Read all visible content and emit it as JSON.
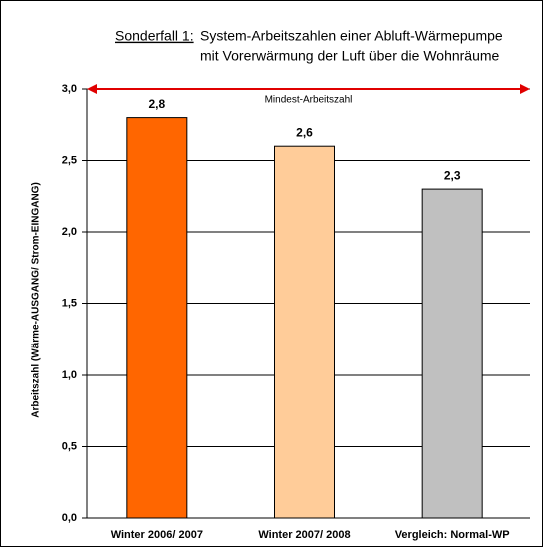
{
  "chart_data": {
    "type": "bar",
    "title_prefix": "Sonderfall 1:",
    "title": [
      "System-Arbeitszahlen einer Abluft-Wärmepumpe",
      "mit Vorerwärmung der Luft über die Wohnräume"
    ],
    "ylabel": "Arbeitszahl  (Wärme-AUSGANG/ Strom-EINGANG)",
    "categories": [
      "Winter 2006/ 2007",
      "Winter 2007/ 2008",
      "Vergleich: Normal-WP"
    ],
    "values": [
      2.8,
      2.6,
      2.3
    ],
    "value_labels": [
      "2,8",
      "2,6",
      "2,3"
    ],
    "colors": [
      "#ff6600",
      "#ffcc99",
      "#c0c0c0"
    ],
    "ylim": [
      0,
      3
    ],
    "yticks": [
      {
        "value": 0,
        "label": "0,0"
      },
      {
        "value": 0.5,
        "label": "0,5"
      },
      {
        "value": 1,
        "label": "1,0"
      },
      {
        "value": 1.5,
        "label": "1,5"
      },
      {
        "value": 2,
        "label": "2,0"
      },
      {
        "value": 2.5,
        "label": "2,5"
      },
      {
        "value": 3,
        "label": "3,0"
      }
    ],
    "grid": true,
    "reference_line": {
      "value": 3,
      "label": "Mindest-Arbeitszahl",
      "color": "#e00000"
    }
  }
}
